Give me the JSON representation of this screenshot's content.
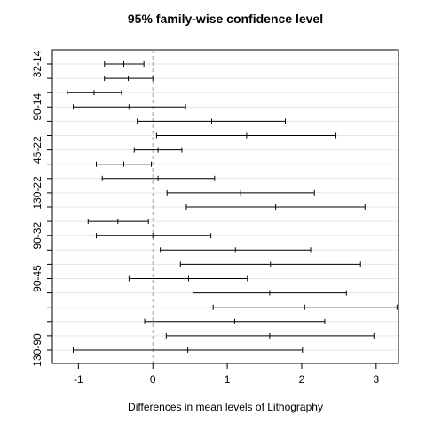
{
  "chart_data": {
    "type": "interval",
    "title": "95% family-wise confidence level",
    "xlabel": "Differences in mean levels of Lithography",
    "ylabel": "",
    "xlim": [
      -1.35,
      3.3
    ],
    "x_ticks": [
      -1,
      0,
      1,
      2,
      3
    ],
    "reference_line": 0,
    "grid": true,
    "y_tick_labels": [
      {
        "row": 1,
        "label": "32-14"
      },
      {
        "row": 4,
        "label": "90-14"
      },
      {
        "row": 7,
        "label": "45-22"
      },
      {
        "row": 10,
        "label": "130-22"
      },
      {
        "row": 13,
        "label": "90-32"
      },
      {
        "row": 16,
        "label": "90-45"
      },
      {
        "row": 21,
        "label": "130-90"
      }
    ],
    "intervals": [
      {
        "lower": -0.65,
        "estimate": -0.39,
        "upper": -0.12
      },
      {
        "lower": -0.65,
        "estimate": -0.33,
        "upper": 0.0
      },
      {
        "lower": -1.15,
        "estimate": -0.79,
        "upper": -0.42
      },
      {
        "lower": -1.07,
        "estimate": -0.32,
        "upper": 0.44
      },
      {
        "lower": -0.21,
        "estimate": 0.79,
        "upper": 1.78
      },
      {
        "lower": 0.05,
        "estimate": 1.26,
        "upper": 2.46
      },
      {
        "lower": -0.25,
        "estimate": 0.07,
        "upper": 0.39
      },
      {
        "lower": -0.76,
        "estimate": -0.39,
        "upper": -0.02
      },
      {
        "lower": -0.68,
        "estimate": 0.07,
        "upper": 0.83
      },
      {
        "lower": 0.19,
        "estimate": 1.18,
        "upper": 2.17
      },
      {
        "lower": 0.45,
        "estimate": 1.65,
        "upper": 2.85
      },
      {
        "lower": -0.87,
        "estimate": -0.47,
        "upper": -0.06
      },
      {
        "lower": -0.76,
        "estimate": 0.0,
        "upper": 0.78
      },
      {
        "lower": 0.1,
        "estimate": 1.11,
        "upper": 2.12
      },
      {
        "lower": 0.37,
        "estimate": 1.58,
        "upper": 2.79
      },
      {
        "lower": -0.32,
        "estimate": 0.48,
        "upper": 1.27
      },
      {
        "lower": 0.54,
        "estimate": 1.57,
        "upper": 2.6
      },
      {
        "lower": 0.81,
        "estimate": 2.04,
        "upper": 3.28
      },
      {
        "lower": -0.11,
        "estimate": 1.1,
        "upper": 2.31
      },
      {
        "lower": 0.18,
        "estimate": 1.57,
        "upper": 2.97
      },
      {
        "lower": -1.07,
        "estimate": 0.47,
        "upper": 2.01
      }
    ]
  }
}
